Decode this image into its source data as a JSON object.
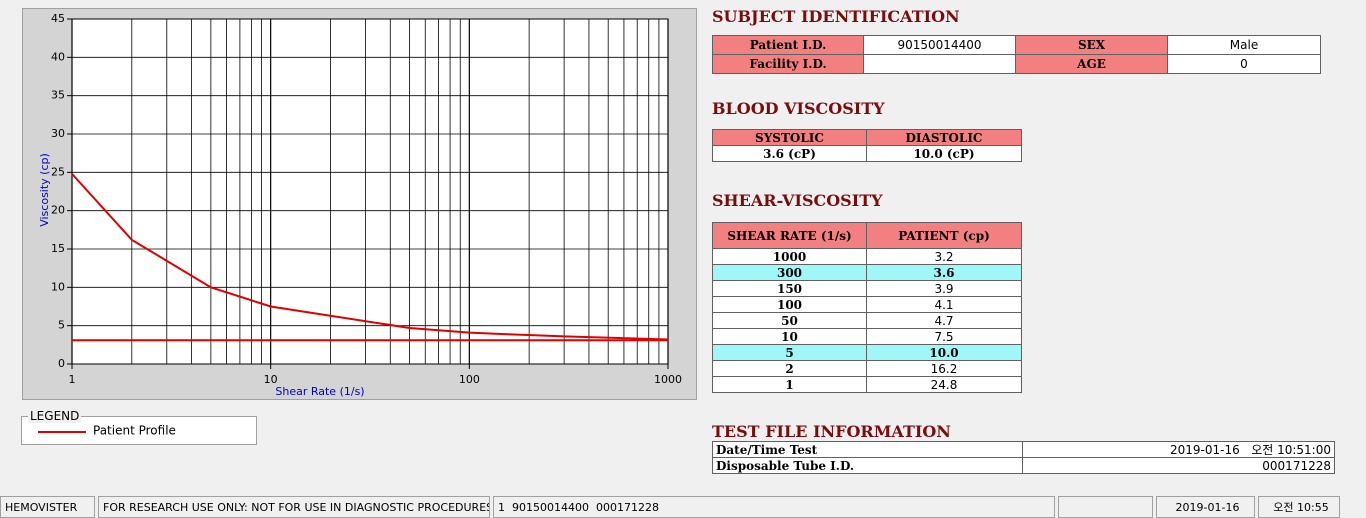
{
  "chart_data": {
    "type": "line",
    "x_label": "Shear Rate (1/s)",
    "y_label": "Viscosity (cp)",
    "x_log": true,
    "grid": true,
    "xlim": [
      1,
      1000
    ],
    "ylim": [
      0,
      45
    ],
    "xticks": [
      1,
      10,
      100,
      1000
    ],
    "yticks": [
      0,
      5,
      10,
      15,
      20,
      25,
      30,
      35,
      40,
      45
    ],
    "series": [
      {
        "name": "Patient Profile",
        "color": "#e00000",
        "x": [
          1,
          2,
          5,
          10,
          50,
          100,
          150,
          300,
          1000
        ],
        "values": [
          24.8,
          16.2,
          10.0,
          7.5,
          4.7,
          4.1,
          3.9,
          3.6,
          3.2
        ]
      },
      {
        "color": "#e00000",
        "x": [
          1,
          1000
        ],
        "values": [
          3.1,
          3.1
        ]
      }
    ]
  },
  "legend_title": "LEGEND",
  "subject": {
    "title": "SUBJECT IDENTIFICATION",
    "rows": [
      [
        "Patient I.D.",
        "90150014400",
        "SEX",
        "Male"
      ],
      [
        "Facility I.D.",
        null,
        "AGE",
        "0"
      ]
    ]
  },
  "blood": {
    "title": "BLOOD VISCOSITY",
    "headers": [
      "SYSTOLIC",
      "DIASTOLIC"
    ],
    "values": [
      "3.6 (cP)",
      "10.0 (cP)"
    ]
  },
  "shear": {
    "title": "SHEAR-VISCOSITY",
    "headers": [
      "SHEAR RATE (1/s)",
      "PATIENT (cp)"
    ],
    "rows": [
      [
        "1000",
        "3.2"
      ],
      [
        "300",
        "3.6"
      ],
      [
        "150",
        "3.9"
      ],
      [
        "100",
        "4.1"
      ],
      [
        "50",
        "4.7"
      ],
      [
        "10",
        "7.5"
      ],
      [
        "5",
        "10.0"
      ],
      [
        "2",
        "16.2"
      ],
      [
        "1",
        "24.8"
      ]
    ],
    "highlight_rows": [
      1,
      6
    ],
    "highlight_color": "#9ff7f7"
  },
  "test_file": {
    "title": "TEST FILE INFORMATION",
    "rows": [
      [
        "Date/Time Test",
        "2019-01-16   오전 10:51:00"
      ],
      [
        "Disposable Tube I.D.",
        "000171228"
      ]
    ]
  },
  "status_bar": [
    "HEMOVISTER",
    "FOR RESEARCH USE ONLY: NOT FOR USE IN DIAGNOSTIC PROCEDURES",
    "1  90150014400  000171228",
    "2019-01-16",
    "오전 10:55"
  ]
}
